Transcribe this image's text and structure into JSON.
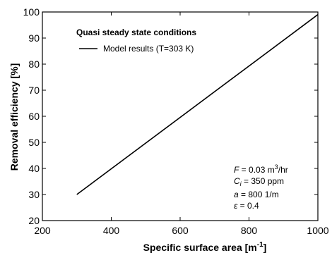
{
  "chart_data": {
    "type": "line",
    "xlabel": "Specific surface area [m",
    "xlabel_sup": "-1",
    "xlabel_tail": "]",
    "ylabel": "Removal efficiency [%]",
    "xlim": [
      200,
      1000
    ],
    "ylim": [
      20,
      100
    ],
    "xticks": [
      200,
      400,
      600,
      800,
      1000
    ],
    "yticks": [
      20,
      30,
      40,
      50,
      60,
      70,
      80,
      90,
      100
    ],
    "grid": false,
    "legend_title": "Quasi steady state conditions",
    "series": [
      {
        "name": "Model results (T=303 K)",
        "x": [
          300,
          1000
        ],
        "y": [
          30,
          99
        ],
        "color": "#000000"
      }
    ],
    "annotations": [
      {
        "var": "F",
        "eq": " = 0.03 m",
        "sup": "3",
        "tail": "/hr"
      },
      {
        "var": "C",
        "sub": "i",
        "eq": " = 350 ppm"
      },
      {
        "var": "a",
        "eq": " = 800 1/m"
      },
      {
        "var": "ε",
        "eq": " = 0.4"
      }
    ]
  }
}
